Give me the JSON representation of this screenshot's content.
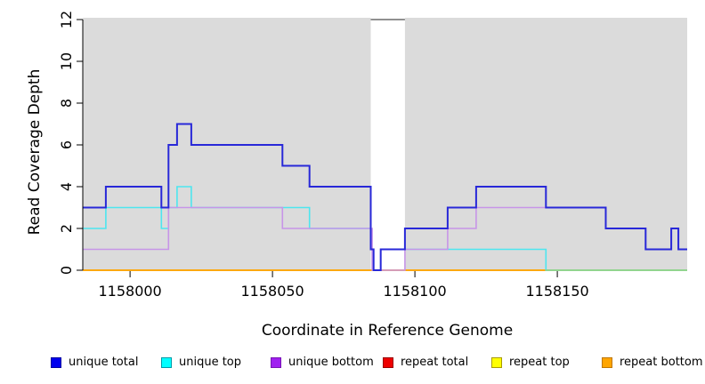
{
  "figure": {
    "background": "#ffffff",
    "plot_background": "#dbdbdb",
    "axis_color": "#000000",
    "text_color": "#000000"
  },
  "chart_data": {
    "type": "line",
    "subtype": "step-coverage",
    "title": "",
    "xlabel": "Coordinate in Reference Genome",
    "ylabel": "Read Coverage Depth",
    "xlim": [
      1157983.4,
      1158195.6
    ],
    "ylim": [
      0,
      12
    ],
    "x_ticks": [
      1158000,
      1158050,
      1158100,
      1158150
    ],
    "y_ticks": [
      0,
      2,
      4,
      6,
      8,
      10,
      12
    ],
    "grid": false,
    "legend_position": "bottom",
    "masked_region": {
      "start": 1158084.5,
      "end": 1158096.5,
      "fill": "#ffffff",
      "marker_depth": 12,
      "marker_color": "#6b6b6b"
    },
    "zero_overlay": {
      "start": 1158146,
      "end": 1158195.6,
      "depth": 0,
      "color": "#90d690"
    },
    "draw_order": [
      3,
      4,
      5,
      1,
      "zero_overlay",
      2,
      0
    ],
    "series": [
      {
        "name": "unique total",
        "color": "#2828d8",
        "width": 2,
        "legend_fill": "#0000ee",
        "legend_border": "#0000a0",
        "steps": [
          [
            1157983.4,
            3
          ],
          [
            1157991.5,
            4
          ],
          [
            1158011,
            3
          ],
          [
            1158013.5,
            6
          ],
          [
            1158016.5,
            7
          ],
          [
            1158021.5,
            6
          ],
          [
            1158053.5,
            5
          ],
          [
            1158063,
            4
          ],
          [
            1158084.5,
            1
          ],
          [
            1158085.5,
            0
          ],
          [
            1158088,
            1
          ],
          [
            1158096.5,
            2
          ],
          [
            1158111.5,
            3
          ],
          [
            1158121.5,
            4
          ],
          [
            1158146,
            3
          ],
          [
            1158167,
            2
          ],
          [
            1158181,
            1
          ],
          [
            1158190,
            2
          ],
          [
            1158192.5,
            1
          ],
          [
            1158195.6,
            1
          ]
        ]
      },
      {
        "name": "unique top",
        "color": "#4de6ef",
        "width": 1.6,
        "legend_fill": "#00ffff",
        "legend_border": "#009aa8",
        "steps": [
          [
            1157983.4,
            2
          ],
          [
            1157991.5,
            3
          ],
          [
            1158011,
            2
          ],
          [
            1158013.5,
            3
          ],
          [
            1158016.5,
            4
          ],
          [
            1158021.5,
            3
          ],
          [
            1158063,
            2
          ],
          [
            1158084.5,
            1
          ],
          [
            1158085.5,
            0
          ],
          [
            1158088,
            1
          ],
          [
            1158146,
            0
          ],
          [
            1158195.6,
            0
          ]
        ]
      },
      {
        "name": "unique bottom",
        "color": "#c795e8",
        "width": 1.6,
        "legend_fill": "#a020f0",
        "legend_border": "#7714b4",
        "steps": [
          [
            1157983.4,
            1
          ],
          [
            1158013.5,
            3
          ],
          [
            1158053.5,
            2
          ],
          [
            1158085,
            0
          ],
          [
            1158096.5,
            1
          ],
          [
            1158111.5,
            2
          ],
          [
            1158121.5,
            3
          ],
          [
            1158167,
            2
          ],
          [
            1158181,
            1
          ],
          [
            1158190,
            2
          ],
          [
            1158192.5,
            1
          ],
          [
            1158195.6,
            1
          ]
        ]
      },
      {
        "name": "repeat total",
        "color": "#ee0000",
        "width": 1.2,
        "legend_fill": "#ee0000",
        "legend_border": "#990000",
        "steps": [
          [
            1157983.4,
            0
          ],
          [
            1158195.6,
            0
          ]
        ]
      },
      {
        "name": "repeat top",
        "color": "#ffff00",
        "width": 1.2,
        "legend_fill": "#ffff00",
        "legend_border": "#a89a00",
        "steps": [
          [
            1157983.4,
            0
          ],
          [
            1158195.6,
            0
          ]
        ]
      },
      {
        "name": "repeat bottom",
        "color": "#ffa500",
        "width": 1.8,
        "legend_fill": "#ffa500",
        "legend_border": "#bf7600",
        "steps": [
          [
            1157983.4,
            0
          ],
          [
            1158195.6,
            0
          ]
        ]
      }
    ]
  }
}
